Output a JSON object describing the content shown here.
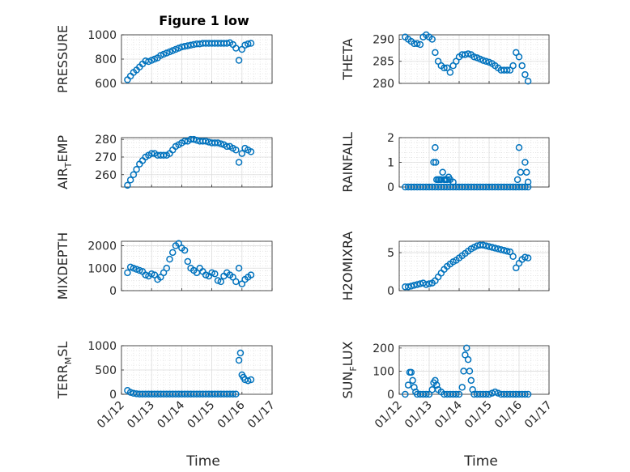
{
  "figure": {
    "title": "Figure 1 low",
    "xlabel": "Time",
    "xticks": [
      "01/12",
      "01/13",
      "01/14",
      "01/15",
      "01/16",
      "01/17"
    ],
    "marker_color": "#0072BD"
  },
  "chart_data": [
    {
      "type": "scatter",
      "ylabel": "PRESSURE",
      "ylim": [
        600,
        1000
      ],
      "yticks": [
        "600",
        "800",
        "1000"
      ],
      "xlim": [
        0,
        5
      ],
      "grid": true,
      "x": [
        0.2,
        0.3,
        0.4,
        0.5,
        0.6,
        0.7,
        0.8,
        0.9,
        1.0,
        1.1,
        1.2,
        1.3,
        1.4,
        1.5,
        1.6,
        1.7,
        1.8,
        1.9,
        2.0,
        2.1,
        2.2,
        2.3,
        2.4,
        2.5,
        2.6,
        2.7,
        2.8,
        2.9,
        3.0,
        3.1,
        3.2,
        3.3,
        3.4,
        3.5,
        3.6,
        3.7,
        3.8,
        3.9,
        4.0,
        4.1,
        4.2,
        4.3
      ],
      "y": [
        630,
        660,
        690,
        710,
        735,
        760,
        785,
        780,
        790,
        800,
        810,
        830,
        840,
        850,
        860,
        870,
        880,
        890,
        900,
        905,
        910,
        915,
        920,
        925,
        925,
        930,
        930,
        930,
        930,
        930,
        930,
        930,
        930,
        930,
        935,
        920,
        890,
        790,
        880,
        915,
        925,
        930
      ]
    },
    {
      "type": "scatter",
      "ylabel": "THETA",
      "ylim": [
        280,
        291
      ],
      "yticks": [
        "280",
        "285",
        "290"
      ],
      "xlim": [
        0,
        5
      ],
      "grid": true,
      "x": [
        0.2,
        0.3,
        0.4,
        0.5,
        0.6,
        0.7,
        0.8,
        0.9,
        1.0,
        1.1,
        1.2,
        1.3,
        1.4,
        1.5,
        1.6,
        1.7,
        1.8,
        1.9,
        2.0,
        2.1,
        2.2,
        2.3,
        2.4,
        2.5,
        2.6,
        2.7,
        2.8,
        2.9,
        3.0,
        3.1,
        3.2,
        3.3,
        3.4,
        3.5,
        3.6,
        3.7,
        3.8,
        3.9,
        4.0,
        4.1,
        4.2,
        4.3
      ],
      "y": [
        290.5,
        290,
        289.5,
        289,
        289,
        288.8,
        290.5,
        291,
        290.5,
        290,
        287,
        285,
        284,
        283.5,
        283.5,
        282.5,
        284,
        285,
        286,
        286.5,
        286.5,
        286.7,
        286.5,
        286,
        285.8,
        285.5,
        285.2,
        285,
        284.8,
        284.5,
        284,
        283.5,
        283,
        283,
        283,
        283,
        284,
        287,
        286,
        284,
        282,
        280.5
      ]
    },
    {
      "type": "scatter",
      "ylabel": "AIR_TEMP",
      "ylim": [
        253,
        281
      ],
      "yticks": [
        "260",
        "270",
        "280"
      ],
      "xlim": [
        0,
        5
      ],
      "grid": true,
      "x": [
        0.2,
        0.3,
        0.4,
        0.5,
        0.6,
        0.7,
        0.8,
        0.9,
        1.0,
        1.1,
        1.2,
        1.3,
        1.4,
        1.5,
        1.6,
        1.7,
        1.8,
        1.9,
        2.0,
        2.1,
        2.2,
        2.3,
        2.4,
        2.5,
        2.6,
        2.7,
        2.8,
        2.9,
        3.0,
        3.1,
        3.2,
        3.3,
        3.4,
        3.5,
        3.6,
        3.7,
        3.8,
        3.9,
        4.0,
        4.1,
        4.2,
        4.3
      ],
      "y": [
        254,
        257,
        260,
        263,
        266,
        268,
        270,
        271,
        272,
        272,
        271,
        271,
        271,
        271,
        272,
        274,
        276,
        277,
        278,
        279,
        279,
        280,
        280,
        279.5,
        279,
        279,
        279,
        278.5,
        278,
        278,
        278,
        277.5,
        277,
        276,
        276,
        275,
        274,
        267,
        272,
        275,
        274,
        273
      ]
    },
    {
      "type": "scatter",
      "ylabel": "RAINFALL",
      "ylim": [
        0,
        2
      ],
      "yticks": [
        "0",
        "1",
        "2"
      ],
      "xlim": [
        0,
        5
      ],
      "grid": true,
      "x": [
        0.2,
        0.3,
        0.4,
        0.5,
        0.6,
        0.7,
        0.8,
        0.9,
        1.0,
        1.1,
        1.2,
        1.3,
        1.4,
        1.5,
        1.6,
        1.7,
        1.8,
        1.9,
        2.0,
        2.1,
        2.2,
        2.3,
        2.4,
        2.5,
        2.6,
        2.7,
        2.8,
        2.9,
        3.0,
        3.1,
        3.2,
        3.3,
        3.4,
        3.5,
        3.6,
        3.7,
        3.8,
        3.9,
        4.0,
        4.1,
        4.2,
        4.3,
        1.15,
        1.2,
        1.22,
        1.25,
        1.3,
        1.35,
        1.4,
        1.45,
        1.5,
        1.55,
        1.6,
        1.65,
        1.7,
        1.8,
        3.95,
        4.0,
        4.05,
        4.2,
        4.25,
        4.3
      ],
      "y": [
        0,
        0,
        0,
        0,
        0,
        0,
        0,
        0,
        0,
        0,
        0,
        0,
        0,
        0,
        0,
        0,
        0,
        0,
        0,
        0,
        0,
        0,
        0,
        0,
        0,
        0,
        0,
        0,
        0,
        0,
        0,
        0,
        0,
        0,
        0,
        0,
        0,
        0,
        0,
        0,
        0,
        0,
        1.0,
        1.6,
        1.0,
        0.3,
        0.3,
        0.3,
        0.3,
        0.6,
        0.3,
        0.3,
        0.3,
        0.4,
        0.3,
        0.2,
        0.3,
        1.6,
        0.6,
        1.0,
        0.6,
        0.2
      ]
    },
    {
      "type": "scatter",
      "ylabel": "MIXDEPTH",
      "ylim": [
        0,
        2200
      ],
      "yticks": [
        "0",
        "1000",
        "2000"
      ],
      "xlim": [
        0,
        5
      ],
      "grid": true,
      "x": [
        0.2,
        0.3,
        0.4,
        0.5,
        0.6,
        0.7,
        0.8,
        0.9,
        1.0,
        1.1,
        1.2,
        1.3,
        1.4,
        1.5,
        1.6,
        1.7,
        1.8,
        1.9,
        2.0,
        2.1,
        2.2,
        2.3,
        2.4,
        2.5,
        2.6,
        2.7,
        2.8,
        2.9,
        3.0,
        3.1,
        3.2,
        3.3,
        3.4,
        3.5,
        3.6,
        3.7,
        3.8,
        3.9,
        4.0,
        4.1,
        4.2,
        4.3
      ],
      "y": [
        800,
        1050,
        1000,
        950,
        900,
        850,
        700,
        650,
        750,
        700,
        500,
        600,
        800,
        1000,
        1400,
        1700,
        2000,
        2100,
        1900,
        1800,
        1300,
        1000,
        900,
        800,
        1000,
        850,
        700,
        650,
        800,
        750,
        450,
        400,
        650,
        800,
        700,
        600,
        400,
        1000,
        300,
        500,
        600,
        700
      ]
    },
    {
      "type": "scatter",
      "ylabel": "H2OMIXRA",
      "ylim": [
        0,
        6.5
      ],
      "yticks": [
        "0",
        "5"
      ],
      "xlim": [
        0,
        5
      ],
      "grid": true,
      "x": [
        0.2,
        0.3,
        0.4,
        0.5,
        0.6,
        0.7,
        0.8,
        0.9,
        1.0,
        1.1,
        1.2,
        1.3,
        1.4,
        1.5,
        1.6,
        1.7,
        1.8,
        1.9,
        2.0,
        2.1,
        2.2,
        2.3,
        2.4,
        2.5,
        2.6,
        2.7,
        2.8,
        2.9,
        3.0,
        3.1,
        3.2,
        3.3,
        3.4,
        3.5,
        3.6,
        3.7,
        3.8,
        3.9,
        4.0,
        4.1,
        4.2,
        4.3
      ],
      "y": [
        0.5,
        0.5,
        0.6,
        0.7,
        0.8,
        0.9,
        1.0,
        0.8,
        0.9,
        1.0,
        1.3,
        1.8,
        2.3,
        2.8,
        3.2,
        3.5,
        3.8,
        4.0,
        4.3,
        4.6,
        4.9,
        5.2,
        5.5,
        5.7,
        5.9,
        6.0,
        6.0,
        5.9,
        5.8,
        5.7,
        5.6,
        5.5,
        5.4,
        5.3,
        5.2,
        5.1,
        4.5,
        3.0,
        3.6,
        4.1,
        4.4,
        4.3
      ]
    },
    {
      "type": "scatter",
      "ylabel": "TERR_MSL",
      "ylim": [
        0,
        1000
      ],
      "yticks": [
        "0",
        "500",
        "1000"
      ],
      "xlim": [
        0,
        5
      ],
      "grid": true,
      "x": [
        0.2,
        0.3,
        0.4,
        0.5,
        0.6,
        0.7,
        0.8,
        0.9,
        1.0,
        1.1,
        1.2,
        1.3,
        1.4,
        1.5,
        1.6,
        1.7,
        1.8,
        1.9,
        2.0,
        2.1,
        2.2,
        2.3,
        2.4,
        2.5,
        2.6,
        2.7,
        2.8,
        2.9,
        3.0,
        3.1,
        3.2,
        3.3,
        3.4,
        3.5,
        3.6,
        3.7,
        3.8,
        3.9,
        3.95,
        4.0,
        4.05,
        4.1,
        4.2,
        4.3
      ],
      "y": [
        80,
        40,
        20,
        10,
        5,
        5,
        5,
        5,
        5,
        5,
        5,
        5,
        5,
        5,
        5,
        5,
        5,
        5,
        5,
        5,
        5,
        5,
        5,
        5,
        5,
        5,
        5,
        5,
        5,
        5,
        5,
        5,
        5,
        5,
        5,
        5,
        5,
        700,
        850,
        400,
        350,
        300,
        280,
        300
      ]
    },
    {
      "type": "scatter",
      "ylabel": "SUN_FLUX",
      "ylim": [
        0,
        210
      ],
      "yticks": [
        "0",
        "100",
        "200"
      ],
      "xlim": [
        0,
        5
      ],
      "grid": true,
      "x": [
        0.2,
        0.3,
        0.35,
        0.4,
        0.45,
        0.5,
        0.55,
        0.6,
        0.7,
        0.8,
        0.9,
        1.0,
        1.1,
        1.15,
        1.2,
        1.25,
        1.3,
        1.4,
        1.5,
        1.6,
        1.7,
        1.8,
        1.9,
        2.0,
        2.1,
        2.15,
        2.2,
        2.25,
        2.3,
        2.35,
        2.4,
        2.45,
        2.5,
        2.6,
        2.7,
        2.8,
        2.9,
        3.0,
        3.1,
        3.2,
        3.3,
        3.4,
        3.5,
        3.6,
        3.7,
        3.8,
        3.9,
        4.0,
        4.1,
        4.2,
        4.3
      ],
      "y": [
        0,
        40,
        95,
        95,
        60,
        30,
        10,
        0,
        0,
        0,
        0,
        0,
        20,
        50,
        60,
        40,
        20,
        10,
        0,
        0,
        0,
        0,
        0,
        0,
        30,
        100,
        170,
        200,
        150,
        100,
        60,
        20,
        0,
        0,
        0,
        0,
        0,
        0,
        5,
        10,
        5,
        0,
        0,
        0,
        0,
        0,
        0,
        0,
        0,
        0,
        0
      ]
    }
  ]
}
